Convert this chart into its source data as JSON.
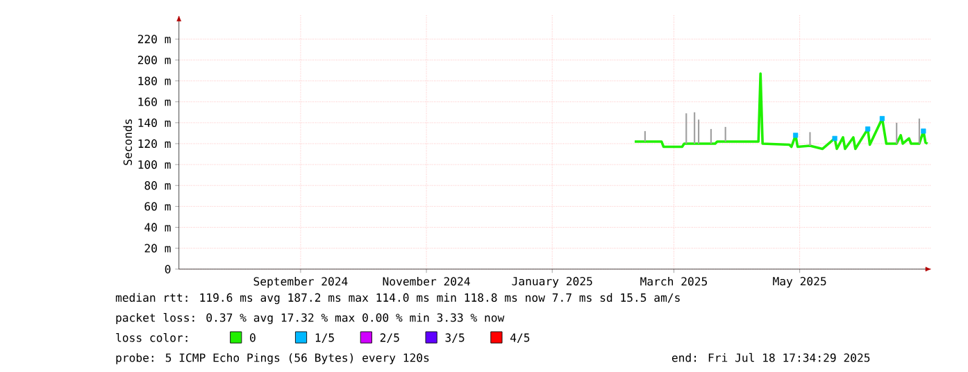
{
  "chart_data": {
    "type": "line",
    "ylabel": "Seconds",
    "xlim": [
      "2024-07-18",
      "2025-07-18"
    ],
    "xticks": [
      {
        "value": "2024-09-15",
        "label": "September 2024"
      },
      {
        "value": "2024-11-15",
        "label": "November 2024"
      },
      {
        "value": "2025-01-15",
        "label": "January 2025"
      },
      {
        "value": "2025-03-15",
        "label": "March 2025"
      },
      {
        "value": "2025-05-15",
        "label": "May 2025"
      }
    ],
    "ylim": [
      0,
      243
    ],
    "yticks": [
      0,
      {
        "value": 20,
        "label": "20 m"
      },
      {
        "value": 40,
        "label": "40 m"
      },
      {
        "value": 60,
        "label": "60 m"
      },
      {
        "value": 80,
        "label": "80 m"
      },
      {
        "value": 100,
        "label": "100 m"
      },
      {
        "value": 120,
        "label": "120 m"
      },
      {
        "value": 140,
        "label": "140 m"
      },
      {
        "value": 160,
        "label": "160 m"
      },
      {
        "value": 180,
        "label": "180 m"
      },
      {
        "value": 200,
        "label": "200 m"
      },
      {
        "value": 220,
        "label": "220 m"
      }
    ],
    "grid": true,
    "legend": "bottom",
    "legend_title": "loss color:",
    "series": [
      {
        "name": "0",
        "color": "#20f000",
        "x": [
          "2025-02-24",
          "2025-03-01",
          "2025-03-03",
          "2025-03-09",
          "2025-03-10",
          "2025-03-19",
          "2025-03-20",
          "2025-03-21",
          "2025-03-23",
          "2025-03-25",
          "2025-03-27",
          "2025-03-29",
          "2025-04-02",
          "2025-04-04",
          "2025-04-05",
          "2025-04-09",
          "2025-04-11",
          "2025-04-25",
          "2025-04-26",
          "2025-04-27",
          "2025-05-10",
          "2025-05-11",
          "2025-05-13",
          "2025-05-14",
          "2025-05-20",
          "2025-05-22",
          "2025-05-26",
          "2025-06-01",
          "2025-06-02",
          "2025-06-05",
          "2025-06-06",
          "2025-06-10",
          "2025-06-11",
          "2025-06-17",
          "2025-06-18",
          "2025-06-24",
          "2025-06-26",
          "2025-07-01",
          "2025-07-03",
          "2025-07-04",
          "2025-07-07",
          "2025-07-08",
          "2025-07-12",
          "2025-07-14",
          "2025-07-15",
          "2025-07-16"
        ],
        "values": [
          122,
          122,
          122,
          122,
          117,
          117,
          120,
          120,
          120,
          120,
          120,
          120,
          120,
          120,
          122,
          122,
          122,
          122,
          187,
          120,
          119,
          117,
          128,
          117,
          118,
          117,
          115,
          125,
          115,
          126,
          115,
          126,
          115,
          134,
          119,
          144,
          120,
          120,
          128,
          120,
          125,
          120,
          120,
          132,
          121,
          120
        ]
      },
      {
        "color": "#a0a0a0",
        "x": [
          "2025-03-01",
          "2025-03-01"
        ],
        "values": [
          122,
          132
        ]
      },
      {
        "color": "#a0a0a0",
        "x": [
          "2025-03-21",
          "2025-03-21"
        ],
        "values": [
          120,
          149
        ]
      },
      {
        "color": "#a0a0a0",
        "x": [
          "2025-03-25",
          "2025-03-25"
        ],
        "values": [
          120,
          150
        ]
      },
      {
        "color": "#a0a0a0",
        "x": [
          "2025-03-27",
          "2025-03-27"
        ],
        "values": [
          120,
          143
        ]
      },
      {
        "color": "#a0a0a0",
        "x": [
          "2025-04-02",
          "2025-04-02"
        ],
        "values": [
          120,
          134
        ]
      },
      {
        "color": "#a0a0a0",
        "x": [
          "2025-04-09",
          "2025-04-09"
        ],
        "values": [
          122,
          136
        ]
      },
      {
        "color": "#a0a0a0",
        "x": [
          "2025-05-20",
          "2025-05-20"
        ],
        "values": [
          118,
          131
        ]
      },
      {
        "color": "#a0a0a0",
        "x": [
          "2025-07-01",
          "2025-07-01"
        ],
        "values": [
          120,
          140
        ]
      },
      {
        "color": "#a0a0a0",
        "x": [
          "2025-07-12",
          "2025-07-12"
        ],
        "values": [
          120,
          144
        ]
      },
      {
        "name": "1/5",
        "color": "#00b8ff",
        "type": "scatter",
        "marker": "square",
        "x": [
          "2025-05-13",
          "2025-06-01",
          "2025-06-17",
          "2025-06-24",
          "2025-07-14"
        ],
        "values": [
          128,
          125,
          134,
          144,
          132
        ]
      },
      {
        "name": "2/5",
        "color": "#d000ff"
      },
      {
        "name": "3/5",
        "color": "#6000ff"
      },
      {
        "name": "4/5",
        "color": "#ff0000"
      }
    ],
    "annotations": [
      "median rtt:  119.6 ms avg  187.2 ms max  114.0 ms min  118.8 ms now  7.7 ms sd  15.5   am/s",
      "packet loss: 0.37 % avg  17.32 % max  0.00 % min  3.33 % now",
      "probe:       5 ICMP Echo Pings (56 Bytes) every 120s",
      "end: Fri Jul 18 17:34:29 2025"
    ]
  }
}
